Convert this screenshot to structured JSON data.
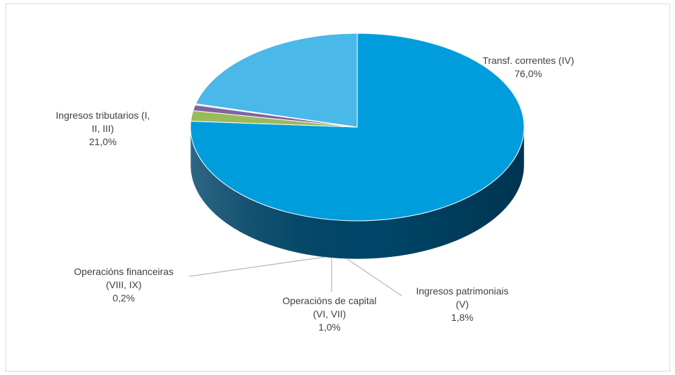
{
  "chart_data": {
    "type": "pie",
    "title": "",
    "series": [
      {
        "slices": [
          {
            "label_lines": [
              "Transf. correntes (IV)"
            ],
            "value_label": "76,0%",
            "value": 76.0,
            "color": "#009ddc",
            "side_color": "#00466a"
          },
          {
            "label_lines": [
              "Ingresos patrimoniais",
              "(V)"
            ],
            "value_label": "1,8%",
            "value": 1.8,
            "color": "#9bbb59",
            "side_color": "#566e2f"
          },
          {
            "label_lines": [
              "Operacións de capital",
              "(VI, VII)"
            ],
            "value_label": "1,0%",
            "value": 1.0,
            "color": "#8064a2",
            "side_color": "#3f2f55"
          },
          {
            "label_lines": [
              "Operacións financeiras",
              "(VIII, IX)"
            ],
            "value_label": "0,2%",
            "value": 0.2,
            "color": "#d9d9d9",
            "side_color": "#7f7f7f"
          },
          {
            "label_lines": [
              "Ingresos tributarios (I,",
              "II, III)"
            ],
            "value_label": "21,0%",
            "value": 21.0,
            "color": "#4ab8e8",
            "side_color": "#2f86b1"
          }
        ]
      }
    ]
  }
}
